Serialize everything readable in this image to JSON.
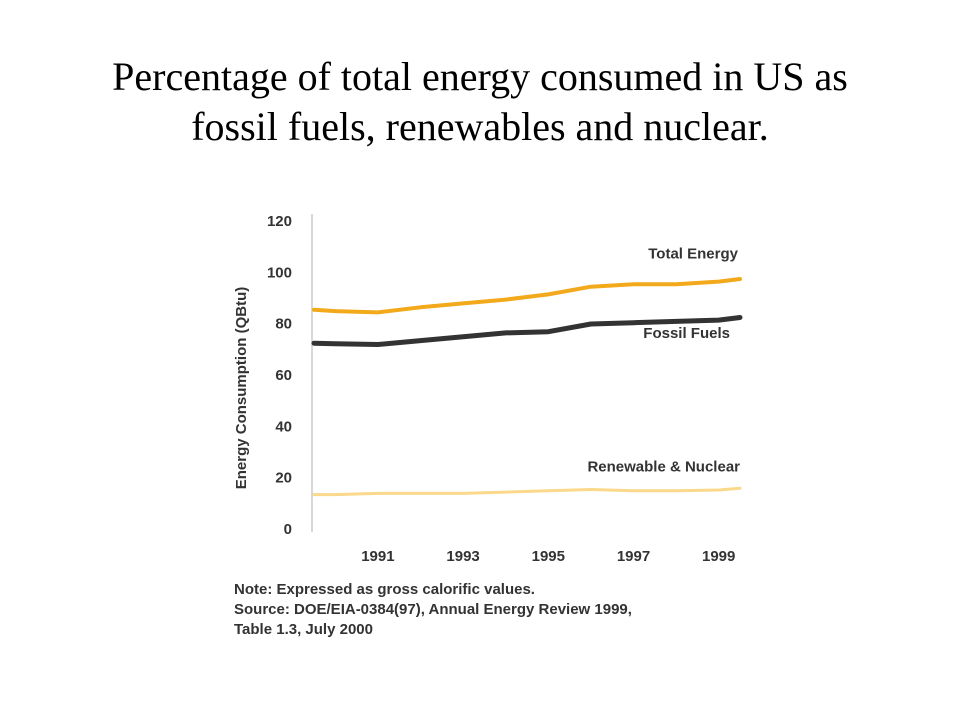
{
  "slide": {
    "title_line1": "Percentage of total energy consumed in US as",
    "title_line2": "fossil fuels, renewables and nuclear."
  },
  "chart_data": {
    "type": "line",
    "title": "",
    "xlabel": "",
    "ylabel": "Energy Consumption (QBtu)",
    "ylim": [
      0,
      120
    ],
    "yticks": [
      "0",
      "20",
      "40",
      "60",
      "80",
      "100",
      "120"
    ],
    "xlim": [
      1989.5,
      1999.5
    ],
    "xticks": [
      "1991",
      "1993",
      "1995",
      "1997",
      "1999"
    ],
    "x": [
      1989.5,
      1990,
      1991,
      1992,
      1993,
      1994,
      1995,
      1996,
      1997,
      1998,
      1999,
      1999.5
    ],
    "series": [
      {
        "name": "Total Energy",
        "color": "#f2a91c",
        "values": [
          85,
          84.5,
          84,
          86,
          87.5,
          89,
          91,
          94,
          95,
          95,
          96,
          97
        ]
      },
      {
        "name": "Fossil Fuels",
        "color": "#333333",
        "values": [
          72,
          71.8,
          71.5,
          73,
          74.5,
          76,
          76.5,
          79.5,
          80,
          80.5,
          81,
          82
        ]
      },
      {
        "name": "Renewable & Nuclear",
        "color": "#fbd88a",
        "values": [
          13,
          13,
          13.5,
          13.5,
          13.5,
          14,
          14.5,
          15,
          14.5,
          14.5,
          14.8,
          15.5
        ]
      }
    ],
    "legend_position": "inline",
    "grid": false,
    "notes": [
      "Note: Expressed as gross calorific values.",
      "Source:  DOE/EIA-0384(97), Annual Energy Review 1999,",
      "Table 1.3, July 2000"
    ]
  }
}
